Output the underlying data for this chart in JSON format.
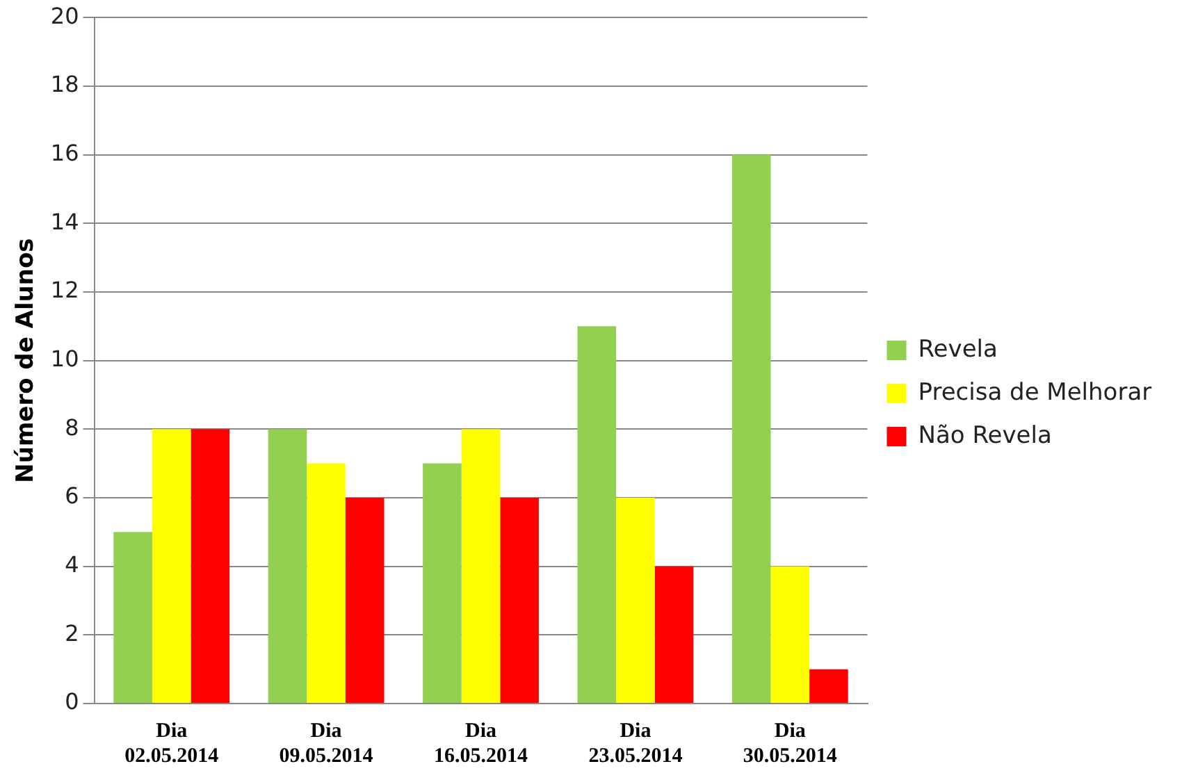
{
  "chart_data": {
    "type": "bar",
    "ylabel": "Número de Alunos",
    "categories": [
      "Dia 02.05.2014",
      "Dia 09.05.2014",
      "Dia 16.05.2014",
      "Dia 23.05.2014",
      "Dia 30.05.2014"
    ],
    "series": [
      {
        "name": "Revela",
        "color": "#92d050",
        "values": [
          5,
          8,
          7,
          11,
          16
        ]
      },
      {
        "name": "Precisa de Melhorar",
        "color": "#ffff00",
        "values": [
          8,
          7,
          8,
          6,
          4
        ]
      },
      {
        "name": "Não Revela",
        "color": "#ff0000",
        "values": [
          8,
          6,
          6,
          4,
          1
        ]
      }
    ],
    "ylim": [
      0,
      20
    ],
    "yticks": [
      0,
      2,
      4,
      6,
      8,
      10,
      12,
      14,
      16,
      18,
      20
    ],
    "grid": "y",
    "legend": "right"
  }
}
